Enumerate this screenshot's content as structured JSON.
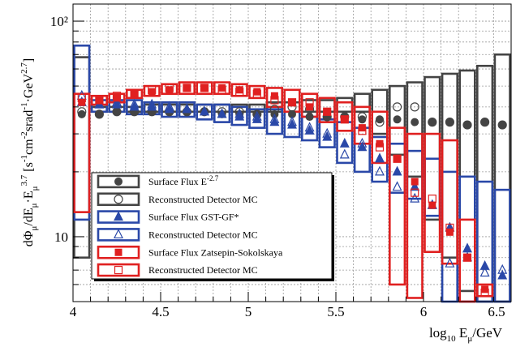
{
  "chart_data": {
    "type": "scatter",
    "x_label": "log10 Eμ/GeV",
    "y_label": "dΦμ/dEμ·Eμ^3.7 [s-1cm-2srad-1GeV2.7]",
    "x_range": [
      4.0,
      6.5
    ],
    "y_range": [
      5.0,
      120.0
    ],
    "y_scale": "log",
    "x_ticks": [
      "4",
      "4.5",
      "5",
      "5.5",
      "6",
      "6.5"
    ],
    "y_ticks": [
      "10",
      "10²"
    ],
    "bin_width": 0.1,
    "grid": true,
    "legend_position": "left",
    "legend": [
      {
        "text": "Surface Flux E",
        "sup": "-2.7",
        "marker": "filled-circle",
        "color": "#444444"
      },
      {
        "text": "Reconstructed Detector MC",
        "sup": "",
        "marker": "open-circle",
        "color": "#444444"
      },
      {
        "text": "Surface Flux GST-GF*",
        "sup": "",
        "marker": "filled-triangle",
        "color": "#2a48a8"
      },
      {
        "text": "Reconstructed Detector MC",
        "sup": "",
        "marker": "open-triangle",
        "color": "#2a48a8"
      },
      {
        "text": "Surface Flux Zatsepin-Sokolskaya",
        "sup": "",
        "marker": "filled-square",
        "color": "#e02020"
      },
      {
        "text": "Reconstructed Detector MC",
        "sup": "",
        "marker": "open-square",
        "color": "#e02020"
      }
    ],
    "series": [
      {
        "name": "Surface Flux E-2.7",
        "color": "#444444",
        "marker": "filled-circle",
        "x": [
          4.05,
          4.15,
          4.25,
          4.35,
          4.45,
          4.55,
          4.65,
          4.75,
          4.85,
          4.95,
          5.05,
          5.15,
          5.25,
          5.35,
          5.45,
          5.55,
          5.65,
          5.75,
          5.85,
          5.95,
          6.05,
          6.15,
          6.25,
          6.35,
          6.45
        ],
        "y": [
          37,
          37,
          38,
          38,
          38,
          38,
          38,
          38,
          37,
          37,
          37,
          37,
          37,
          36,
          36,
          36,
          35,
          35,
          35,
          34,
          34,
          34,
          33,
          34,
          33
        ]
      },
      {
        "name": "Reconstructed Detector MC (E-2.7)",
        "color": "#444444",
        "marker": "open-circle",
        "x": [
          4.05,
          4.15,
          4.25,
          4.35,
          4.45,
          4.55,
          4.65,
          4.75,
          4.85,
          4.95,
          5.05,
          5.15,
          5.25,
          5.35,
          5.45,
          5.55,
          5.65,
          5.75,
          5.85,
          5.95,
          6.05,
          6.15,
          6.25,
          6.35,
          6.45
        ],
        "y": [
          38,
          37,
          38,
          38,
          38,
          38,
          38,
          38,
          38,
          38,
          37,
          39,
          40,
          39,
          36,
          36,
          36,
          34,
          40,
          40,
          34,
          34,
          33,
          34,
          33
        ],
        "box_low": [
          8,
          38,
          38,
          38,
          38,
          38,
          38,
          38,
          38,
          38,
          38,
          38,
          38,
          38,
          38,
          38,
          38,
          30,
          24,
          19,
          12,
          8,
          5.6,
          5,
          5
        ],
        "box_high": [
          68,
          40,
          40,
          40,
          41,
          41,
          41,
          41,
          41,
          41,
          41,
          42,
          42,
          43,
          43,
          44,
          46,
          48,
          50,
          52,
          55,
          57,
          59,
          62,
          70
        ]
      },
      {
        "name": "Surface Flux GST-GF*",
        "color": "#2a48a8",
        "marker": "filled-triangle",
        "x": [
          4.05,
          4.15,
          4.25,
          4.35,
          4.45,
          4.55,
          4.65,
          4.75,
          4.85,
          4.95,
          5.05,
          5.15,
          5.25,
          5.35,
          5.45,
          5.55,
          5.65,
          5.75,
          5.85,
          5.95,
          6.05,
          6.15,
          6.25,
          6.35,
          6.45
        ],
        "y": [
          42,
          41,
          41,
          40,
          40,
          39,
          39,
          38,
          37,
          36,
          35,
          34,
          33,
          31,
          29,
          27,
          26,
          23,
          20,
          17,
          14,
          11,
          8.8,
          7.3,
          6.6
        ]
      },
      {
        "name": "Reconstructed Detector MC (GST-GF*)",
        "color": "#2a48a8",
        "marker": "open-triangle",
        "x": [
          4.05,
          4.15,
          4.25,
          4.35,
          4.45,
          4.55,
          4.65,
          4.75,
          4.85,
          4.95,
          5.05,
          5.15,
          5.25,
          5.35,
          5.45,
          5.55,
          5.65,
          5.75,
          5.85,
          5.95,
          6.05,
          6.15,
          6.25,
          6.35,
          6.45
        ],
        "y": [
          45,
          41,
          42,
          41,
          41,
          40,
          39,
          38,
          37,
          37,
          36,
          35,
          34,
          32,
          30,
          24,
          27,
          20,
          17,
          15,
          14,
          7.5,
          8,
          6.8,
          7
        ],
        "box_low": [
          12,
          38,
          38,
          37,
          37,
          36,
          36,
          35,
          34,
          33,
          32,
          30,
          29,
          28,
          26,
          22,
          20,
          18,
          16,
          15,
          12.5,
          5,
          5,
          5,
          5
        ],
        "box_high": [
          77,
          43,
          43,
          43,
          42,
          42,
          42,
          41,
          41,
          40,
          39,
          39,
          38,
          36,
          35,
          34,
          32,
          29,
          27,
          25,
          23,
          20,
          19,
          18,
          16.5
        ]
      },
      {
        "name": "Surface Flux Zatsepin-Sokolskaya",
        "color": "#e02020",
        "marker": "filled-square",
        "x": [
          4.05,
          4.15,
          4.25,
          4.35,
          4.45,
          4.55,
          4.65,
          4.75,
          4.85,
          4.95,
          5.05,
          5.15,
          5.25,
          5.35,
          5.45,
          5.55,
          5.65,
          5.75,
          5.85,
          5.95,
          6.05,
          6.15,
          6.25,
          6.35
        ],
        "y": [
          42,
          43,
          44,
          46,
          47,
          48,
          49,
          49,
          49,
          48,
          47,
          45,
          42,
          40,
          38,
          35,
          32,
          27,
          23,
          18,
          14,
          10.5,
          8,
          5.7
        ],
        "y_has_point": true
      },
      {
        "name": "Reconstructed Detector MC (Zatsepin-Sokolskaya)",
        "color": "#e02020",
        "marker": "open-square",
        "x": [
          4.05,
          4.15,
          4.25,
          4.35,
          4.45,
          4.55,
          4.65,
          4.75,
          4.85,
          4.95,
          5.05,
          5.15,
          5.25,
          5.35,
          5.45,
          5.55,
          5.65,
          5.75,
          5.85,
          5.95,
          6.05,
          6.15,
          6.25,
          6.35
        ],
        "y": [
          44,
          43,
          45,
          46,
          48,
          49,
          49,
          49,
          48,
          47,
          46,
          43,
          42,
          42,
          38,
          35,
          31,
          26,
          23,
          16,
          15,
          11,
          8,
          5.5
        ],
        "box_low": [
          13,
          41,
          42,
          44,
          45,
          46,
          46,
          46,
          46,
          45,
          44,
          40,
          38,
          36,
          34,
          31,
          27,
          22,
          6,
          5.2,
          8.5,
          7.5,
          5,
          5.3
        ],
        "box_high": [
          46,
          45,
          46,
          48,
          50,
          51,
          52,
          52,
          52,
          51,
          50,
          49,
          48,
          46,
          44,
          42,
          40,
          38,
          32,
          30,
          30,
          28,
          12,
          6
        ]
      }
    ]
  }
}
